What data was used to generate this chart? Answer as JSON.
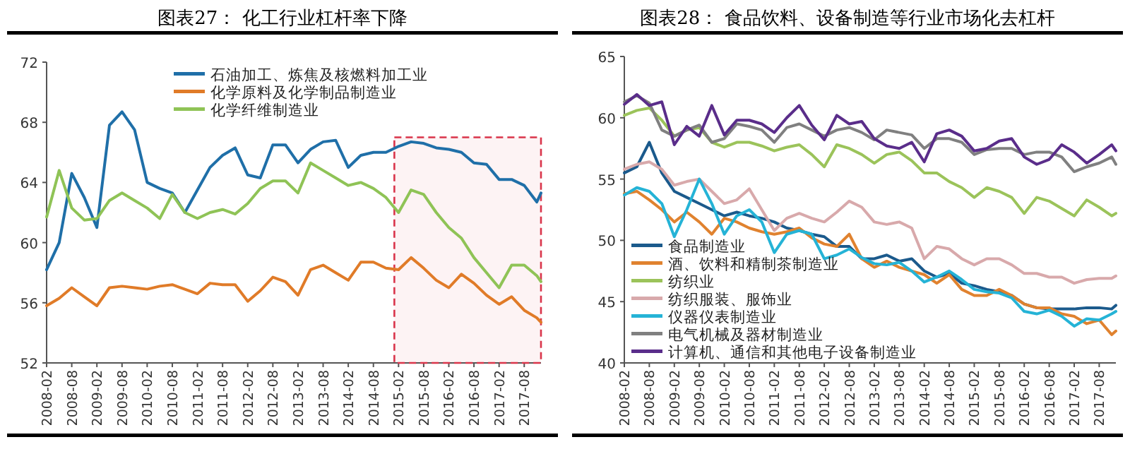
{
  "chart_data": [
    {
      "type": "line",
      "title": "图表27：  化工行业杠杆率下降",
      "x": [
        "2008-02",
        "2008-05",
        "2008-08",
        "2008-11",
        "2009-02",
        "2009-05",
        "2009-08",
        "2009-11",
        "2010-02",
        "2010-05",
        "2010-08",
        "2010-11",
        "2011-02",
        "2011-05",
        "2011-08",
        "2011-11",
        "2012-02",
        "2012-05",
        "2012-08",
        "2012-11",
        "2013-02",
        "2013-05",
        "2013-08",
        "2013-11",
        "2014-02",
        "2014-05",
        "2014-08",
        "2014-11",
        "2015-02",
        "2015-05",
        "2015-08",
        "2015-11",
        "2016-02",
        "2016-05",
        "2016-08",
        "2016-11",
        "2017-02",
        "2017-05",
        "2017-08",
        "2017-11",
        "2017-12"
      ],
      "xlim": [
        "2008-02",
        "2017-12"
      ],
      "xticks": [
        "2008-02",
        "2008-08",
        "2009-02",
        "2009-08",
        "2010-02",
        "2010-08",
        "2011-02",
        "2011-08",
        "2012-02",
        "2012-08",
        "2013-02",
        "2013-08",
        "2014-02",
        "2014-08",
        "2015-02",
        "2015-08",
        "2016-02",
        "2016-08",
        "2017-02",
        "2017-08"
      ],
      "ylim": [
        52,
        72
      ],
      "yticks": [
        52,
        56,
        60,
        64,
        68,
        72
      ],
      "legend": "top",
      "bands": [
        {
          "axis": "x",
          "from": "2015-01",
          "to": "2017-12",
          "color": "#d9344a"
        }
      ],
      "series": [
        {
          "name": "石油加工、炼焦及核燃料加工业",
          "color": "#1f6fa8",
          "values": [
            58.2,
            60,
            64.6,
            63,
            61,
            67.8,
            68.7,
            67.5,
            64,
            63.6,
            63.3,
            62,
            63.5,
            65,
            65.8,
            66.3,
            64.5,
            64.3,
            66.5,
            66.5,
            65.3,
            66.2,
            66.7,
            66.8,
            65,
            65.8,
            66,
            66,
            66.4,
            66.7,
            66.6,
            66.3,
            66.2,
            66,
            65.3,
            65.2,
            64.2,
            64.2,
            63.8,
            62.7,
            63.3
          ]
        },
        {
          "name": "化学原料及化学制品制造业",
          "color": "#e07b28",
          "values": [
            55.8,
            56.3,
            57,
            56.4,
            55.8,
            57,
            57.1,
            57,
            56.9,
            57.1,
            57.2,
            56.9,
            56.6,
            57.3,
            57.2,
            57.2,
            56.1,
            56.8,
            57.7,
            57.4,
            56.5,
            58.2,
            58.5,
            58,
            57.5,
            58.7,
            58.7,
            58.3,
            58.2,
            59,
            58.3,
            57.5,
            57,
            57.9,
            57.3,
            56.5,
            55.9,
            56.4,
            55.5,
            55,
            54.7
          ]
        },
        {
          "name": "化学纤维制造业",
          "color": "#8fc356",
          "values": [
            61.7,
            64.8,
            62.3,
            61.5,
            61.6,
            62.8,
            63.3,
            62.8,
            62.3,
            61.6,
            63.2,
            62,
            61.6,
            62,
            62.2,
            61.9,
            62.6,
            63.6,
            64.1,
            64.1,
            63.3,
            65.3,
            64.8,
            64.3,
            63.8,
            64,
            63.6,
            63,
            62,
            63.5,
            63.2,
            62,
            61,
            60.3,
            59,
            58,
            57,
            58.5,
            58.5,
            57.8,
            57.4
          ]
        }
      ]
    },
    {
      "type": "line",
      "title": "图表28：  食品饮料、设备制造等行业市场化去杠杆",
      "x": [
        "2008-02",
        "2008-05",
        "2008-08",
        "2008-11",
        "2009-02",
        "2009-05",
        "2009-08",
        "2009-11",
        "2010-02",
        "2010-05",
        "2010-08",
        "2010-11",
        "2011-02",
        "2011-05",
        "2011-08",
        "2011-11",
        "2012-02",
        "2012-05",
        "2012-08",
        "2012-11",
        "2013-02",
        "2013-05",
        "2013-08",
        "2013-11",
        "2014-02",
        "2014-05",
        "2014-08",
        "2014-11",
        "2015-02",
        "2015-05",
        "2015-08",
        "2015-11",
        "2016-02",
        "2016-05",
        "2016-08",
        "2016-11",
        "2017-02",
        "2017-05",
        "2017-08",
        "2017-11",
        "2017-12"
      ],
      "xlim": [
        "2008-02",
        "2017-12"
      ],
      "xticks": [
        "2008-02",
        "2008-08",
        "2009-02",
        "2009-08",
        "2010-02",
        "2010-08",
        "2011-02",
        "2011-08",
        "2012-02",
        "2012-08",
        "2013-02",
        "2013-08",
        "2014-02",
        "2014-08",
        "2015-02",
        "2015-08",
        "2016-02",
        "2016-08",
        "2017-02",
        "2017-08"
      ],
      "ylim": [
        40,
        65
      ],
      "yticks": [
        40,
        45,
        50,
        55,
        60,
        65
      ],
      "legend": "bottom left",
      "series": [
        {
          "name": "食品制造业",
          "color": "#1b5a8c",
          "values": [
            55.5,
            56,
            58,
            55.5,
            54,
            53.5,
            53,
            52.5,
            52,
            52.3,
            52,
            51.8,
            51.5,
            51,
            50.8,
            50.5,
            50.3,
            49.5,
            49.5,
            48.5,
            48.5,
            48.8,
            48.3,
            48.5,
            47.5,
            47,
            47.3,
            46.5,
            46.3,
            46,
            45.8,
            45.5,
            44.8,
            44.5,
            44.4,
            44.4,
            44.4,
            44.5,
            44.5,
            44.4,
            44.7
          ]
        },
        {
          "name": "酒、饮料和精制茶制造业",
          "color": "#e0822f",
          "values": [
            53.8,
            54,
            53.3,
            52.5,
            51.5,
            52.3,
            51.5,
            50.5,
            51.8,
            51.5,
            51,
            50.7,
            50.5,
            50.7,
            51,
            50.2,
            49.7,
            49.5,
            50.5,
            48.5,
            47.8,
            48.3,
            47.8,
            47.5,
            47.2,
            46.5,
            47.2,
            46,
            45.5,
            45.5,
            46,
            45.5,
            44.8,
            44.5,
            44.5,
            44,
            43.8,
            43.2,
            43.5,
            42.3,
            42.6
          ]
        },
        {
          "name": "纺织业",
          "color": "#9bc35a",
          "values": [
            60.2,
            60.6,
            60.8,
            59.8,
            58.5,
            59,
            59.2,
            58,
            57.6,
            58,
            58,
            57.7,
            57.3,
            57.6,
            57.8,
            57,
            56,
            57.8,
            57.5,
            57,
            56.3,
            57,
            57.2,
            56.5,
            55.5,
            55.5,
            54.8,
            54.3,
            53.5,
            54.3,
            54,
            53.5,
            52.2,
            53.5,
            53.2,
            52.6,
            52,
            53.3,
            52.7,
            52,
            52.2
          ]
        },
        {
          "name": "纺织服装、服饰业",
          "color": "#d8a9ab",
          "values": [
            55.8,
            56.2,
            56.4,
            55.8,
            54.5,
            54.8,
            55,
            54,
            53,
            53.3,
            54.2,
            52.5,
            50.8,
            51.8,
            52.2,
            51.8,
            51.5,
            52.3,
            53.2,
            52.7,
            51.5,
            51.3,
            51.5,
            51,
            48.5,
            49.5,
            49.3,
            48.5,
            48,
            48.5,
            48.5,
            48,
            47.3,
            47.3,
            47,
            47,
            46.5,
            46.8,
            46.9,
            46.9,
            47.1
          ]
        },
        {
          "name": "仪器仪表制造业",
          "color": "#25b3d6",
          "values": [
            53.7,
            54.3,
            54,
            53,
            50.3,
            52.5,
            55,
            53,
            50.5,
            52,
            52.5,
            51.5,
            49,
            50.5,
            50.8,
            50.5,
            48.5,
            48.8,
            49.3,
            48.6,
            48.1,
            48,
            48.2,
            47.5,
            46.6,
            47,
            47.5,
            46.8,
            46,
            45.8,
            45.7,
            45.3,
            44.2,
            44,
            44.3,
            43.8,
            43,
            43.6,
            43.5,
            44,
            44.2
          ]
        },
        {
          "name": "电气机械及器材制造业",
          "color": "#808080",
          "values": [
            61.3,
            61.8,
            61.2,
            59,
            58.5,
            59,
            59.4,
            58,
            58.3,
            59.5,
            59.3,
            59,
            58,
            59.2,
            59.5,
            59,
            58.5,
            59,
            59.2,
            58.8,
            58.2,
            59,
            58.8,
            58.6,
            57.5,
            58.3,
            58.3,
            58,
            57,
            57.4,
            57.5,
            57.5,
            57,
            57.2,
            57.2,
            56.8,
            55.6,
            56,
            56.3,
            56.8,
            56.2
          ]
        },
        {
          "name": "计算机、通信和其他电子设备制造业",
          "color": "#5a2d8a",
          "values": [
            61.1,
            61.9,
            61,
            61.3,
            57.8,
            59.3,
            58.5,
            61,
            58.6,
            59.8,
            59.8,
            59.5,
            58.8,
            60,
            61,
            59.4,
            58.2,
            60.2,
            59.5,
            59.7,
            58.3,
            57.7,
            57.5,
            58,
            56.4,
            58.7,
            59,
            58.5,
            57.3,
            57.5,
            58.1,
            58.3,
            56.8,
            56.2,
            56.6,
            57.8,
            57.2,
            56.3,
            57,
            57.8,
            57.3
          ]
        }
      ]
    }
  ]
}
